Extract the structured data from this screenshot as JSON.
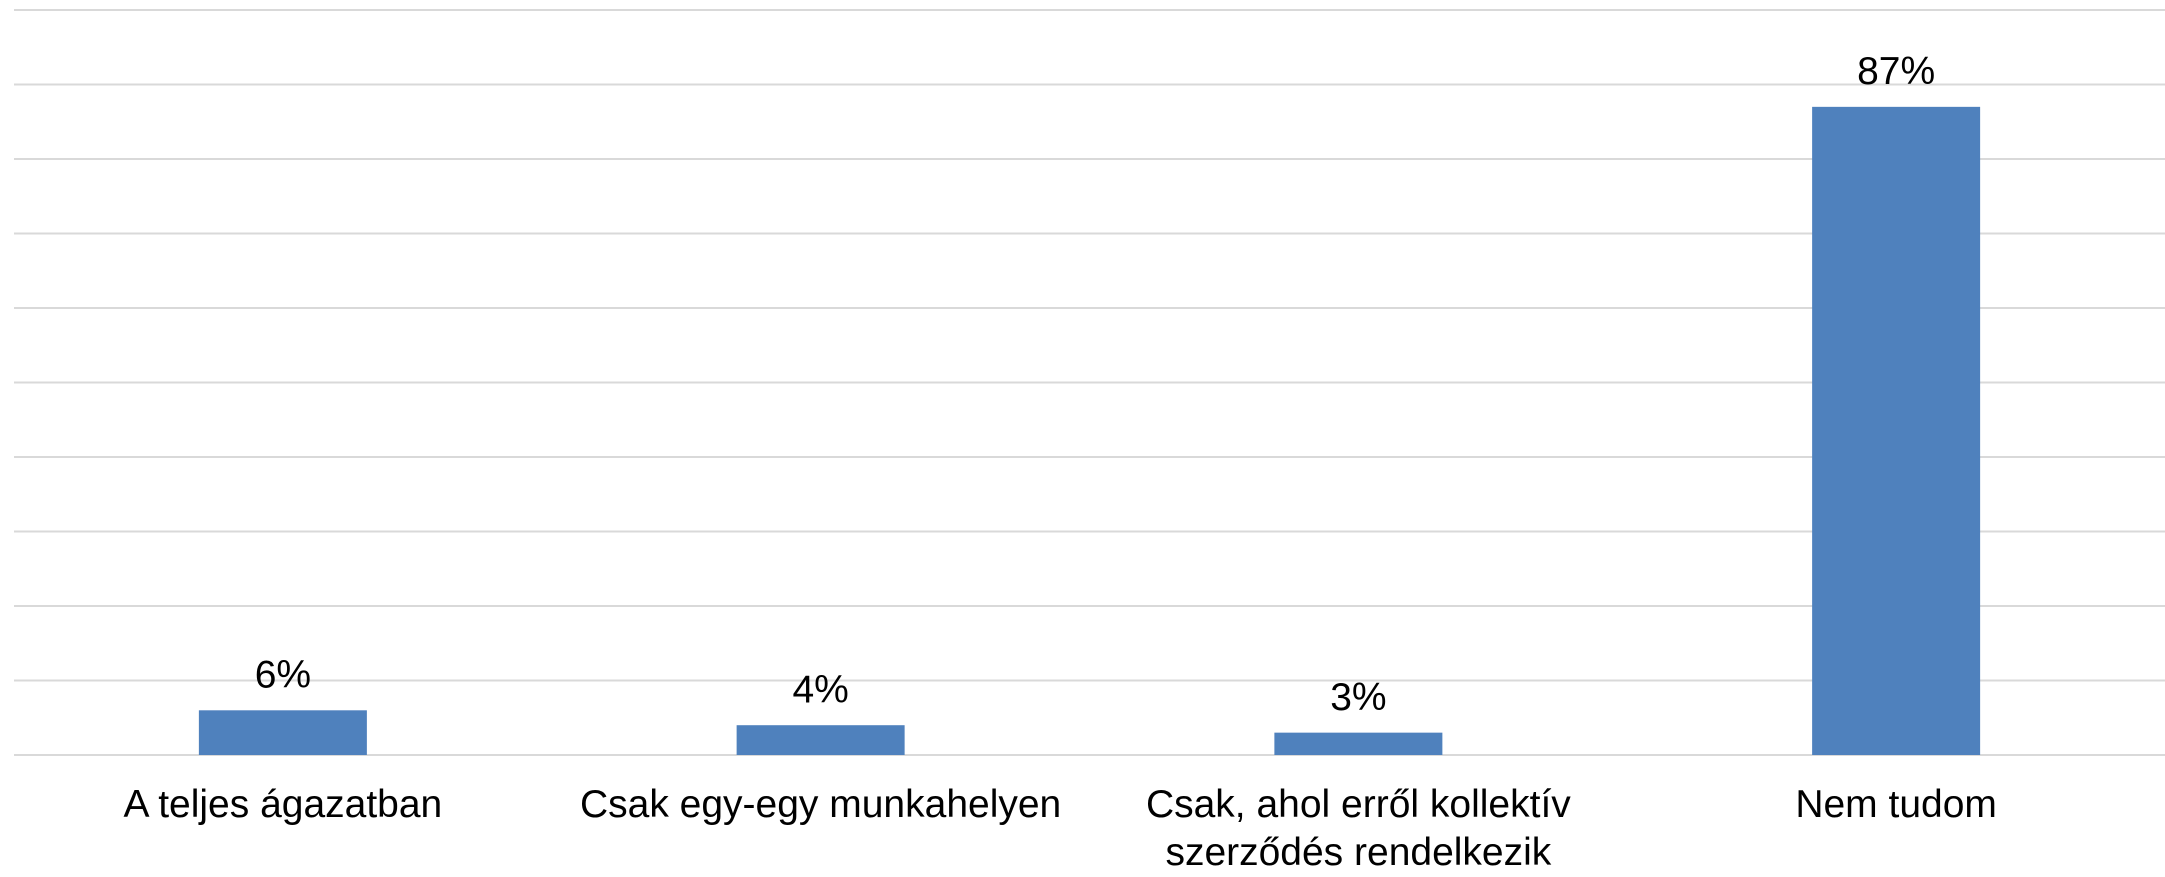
{
  "chart_data": {
    "type": "bar",
    "categories": [
      "A teljes ágazatban",
      "Csak egy-egy munkahelyen",
      "Csak, ahol erről kollektív szerződés rendelkezik",
      "Nem tudom"
    ],
    "values": [
      6,
      4,
      3,
      87
    ],
    "value_labels": [
      "6%",
      "4%",
      "3%",
      "87%"
    ],
    "color": "#4f81bd",
    "ylim": [
      0,
      100
    ],
    "yticks": [
      0,
      10,
      20,
      30,
      40,
      50,
      60,
      70,
      80,
      90,
      100
    ],
    "grid": true
  }
}
